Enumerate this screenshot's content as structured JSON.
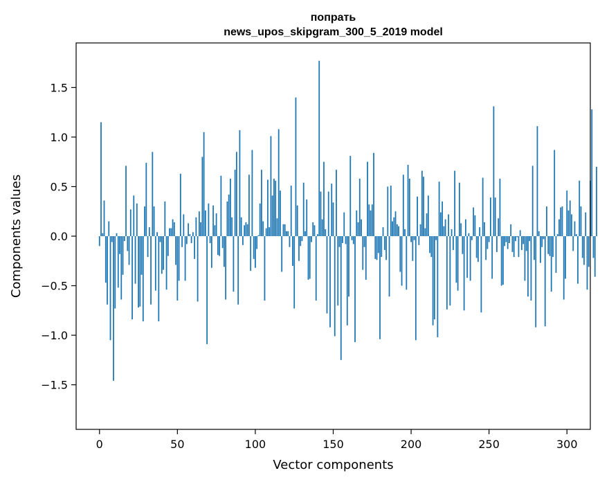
{
  "chart_data": {
    "type": "bar",
    "title_line1": "попрать",
    "title_line2": "news_upos_skipgram_300_5_2019 model",
    "xlabel": "Vector components",
    "ylabel": "Components values",
    "xlim": [
      -15,
      315
    ],
    "ylim": [
      -1.95,
      1.95
    ],
    "xticks": [
      0,
      50,
      100,
      150,
      200,
      250,
      300
    ],
    "xtick_labels": [
      "0",
      "50",
      "100",
      "150",
      "200",
      "250",
      "300"
    ],
    "yticks": [
      -1.5,
      -1.0,
      -0.5,
      0.0,
      0.5,
      1.0,
      1.5
    ],
    "ytick_labels": [
      "−1.5",
      "−1.0",
      "−0.5",
      "0.0",
      "0.5",
      "1.0",
      "1.5"
    ],
    "grid": false,
    "bar_color": "#1f77b4",
    "values": [
      -0.1,
      1.15,
      0.03,
      0.36,
      -0.47,
      -0.69,
      0.15,
      -1.05,
      -0.06,
      -1.46,
      -0.73,
      0.03,
      -0.52,
      -0.18,
      -0.64,
      -0.39,
      -0.05,
      0.71,
      -0.15,
      -0.29,
      0.27,
      -0.84,
      0.41,
      -0.48,
      0.33,
      -0.72,
      -0.71,
      -0.39,
      -0.86,
      0.3,
      0.74,
      -0.21,
      0.09,
      -0.69,
      0.85,
      0.3,
      -0.55,
      0.04,
      -0.86,
      -0.06,
      -0.38,
      -0.34,
      0.35,
      -0.54,
      -0.2,
      0.08,
      0.08,
      0.17,
      0.14,
      -0.29,
      -0.65,
      -0.45,
      0.63,
      -0.11,
      0.22,
      -0.45,
      -0.08,
      0.13,
      0.02,
      -0.07,
      0.04,
      -0.23,
      0.19,
      -0.66,
      0.25,
      0.14,
      0.8,
      1.05,
      0.26,
      -1.09,
      0.33,
      -0.07,
      -0.32,
      0.31,
      0.11,
      0.23,
      -0.19,
      -0.2,
      0.61,
      -0.12,
      -0.31,
      -0.64,
      0.35,
      0.42,
      0.58,
      0.19,
      -0.56,
      0.67,
      0.85,
      -0.69,
      1.07,
      0.19,
      -0.09,
      0.11,
      0.14,
      0.12,
      0.62,
      -0.35,
      0.87,
      -0.23,
      -0.32,
      -0.13,
      0.01,
      0.33,
      0.67,
      0.15,
      -0.65,
      0.08,
      0.57,
      0.09,
      1.01,
      0.41,
      0.58,
      0.56,
      0.18,
      1.08,
      0.46,
      -0.36,
      0.12,
      0.12,
      0.05,
      0.05,
      -0.11,
      0.51,
      -0.3,
      -0.73,
      1.4,
      0.31,
      -0.25,
      -0.1,
      -0.05,
      0.54,
      0.05,
      0.37,
      -0.44,
      -0.43,
      -0.06,
      0.14,
      0.11,
      -0.65,
      0.02,
      1.77,
      0.45,
      0.17,
      0.75,
      0.07,
      -0.78,
      0.45,
      -0.92,
      0.53,
      0.34,
      -1.01,
      0.67,
      -0.7,
      -0.11,
      -1.25,
      -0.07,
      0.24,
      -0.08,
      -0.9,
      -0.61,
      0.81,
      -0.04,
      -0.08,
      -1.07,
      0.26,
      0.14,
      0.58,
      0.17,
      -0.34,
      -0.11,
      -0.44,
      0.75,
      0.32,
      0.26,
      0.32,
      0.84,
      -0.23,
      -0.24,
      -0.17,
      -1.04,
      -0.21,
      0.09,
      -0.14,
      -0.24,
      0.5,
      -0.61,
      0.51,
      0.15,
      0.19,
      0.25,
      0.12,
      0.1,
      -0.36,
      -0.5,
      0.62,
      0.07,
      -0.54,
      0.72,
      0.58,
      -0.06,
      -0.25,
      -0.04,
      -1.05,
      0.4,
      -0.09,
      0.12,
      0.66,
      0.6,
      0.08,
      0.23,
      0.41,
      -0.17,
      -0.21,
      -0.9,
      -0.84,
      -0.04,
      -1.02,
      0.55,
      0.24,
      0.35,
      0.1,
      0.17,
      -0.74,
      0.22,
      -0.7,
      0.07,
      -0.14,
      0.66,
      -0.47,
      -0.55,
      0.54,
      0.13,
      -0.18,
      -0.75,
      0.17,
      -0.42,
      0.03,
      -0.45,
      -0.04,
      0.29,
      0.21,
      -0.22,
      -0.26,
      0.09,
      -0.77,
      0.59,
      0.14,
      -0.24,
      -0.13,
      -0.06,
      0.39,
      -0.43,
      1.31,
      0.39,
      -0.16,
      0.18,
      0.58,
      -0.5,
      -0.49,
      -0.1,
      -0.06,
      -0.13,
      -0.07,
      0.12,
      -0.16,
      -0.21,
      -0.05,
      -0.01,
      -0.21,
      0.06,
      -0.14,
      -0.08,
      -0.45,
      -0.15,
      -0.61,
      -0.05,
      -0.65,
      0.71,
      -0.24,
      -0.92,
      1.11,
      0.05,
      -0.27,
      -0.11,
      -0.03,
      -0.91,
      0.3,
      -0.18,
      -0.2,
      -0.56,
      -0.21,
      0.87,
      -0.37,
      0.02,
      0.17,
      0.29,
      0.3,
      -0.64,
      -0.43,
      0.46,
      0.26,
      0.36,
      0.22,
      -0.15,
      0.15,
      0.02,
      -0.48,
      0.56,
      0.3,
      -0.22,
      -0.29,
      0.24,
      -0.54,
      -0.31,
      0.56,
      1.28,
      -0.22,
      -0.41,
      0.7
    ]
  }
}
